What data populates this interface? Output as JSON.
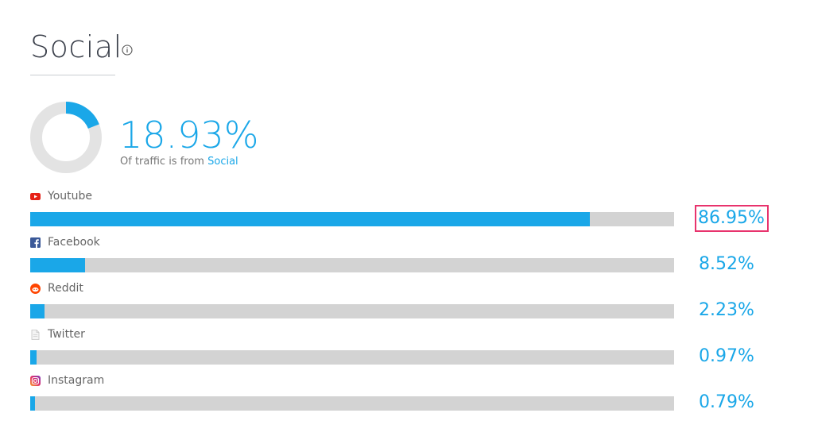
{
  "header": {
    "title": "Social"
  },
  "summary": {
    "percent": "18.93%",
    "percent_value": 18.93,
    "subtitle_prefix": "Of traffic is from",
    "subtitle_highlight": "Social"
  },
  "colors": {
    "accent": "#1aa7e8",
    "track": "#d3d3d3",
    "highlight_border": "#e8336d"
  },
  "sources": [
    {
      "name": "Youtube",
      "percent": "86.95%",
      "value": 86.95,
      "icon": "youtube-icon"
    },
    {
      "name": "Facebook",
      "percent": "8.52%",
      "value": 8.52,
      "icon": "facebook-icon"
    },
    {
      "name": "Reddit",
      "percent": "2.23%",
      "value": 2.23,
      "icon": "reddit-icon"
    },
    {
      "name": "Twitter",
      "percent": "0.97%",
      "value": 0.97,
      "icon": "twitter-icon"
    },
    {
      "name": "Instagram",
      "percent": "0.79%",
      "value": 0.79,
      "icon": "instagram-icon"
    }
  ]
}
